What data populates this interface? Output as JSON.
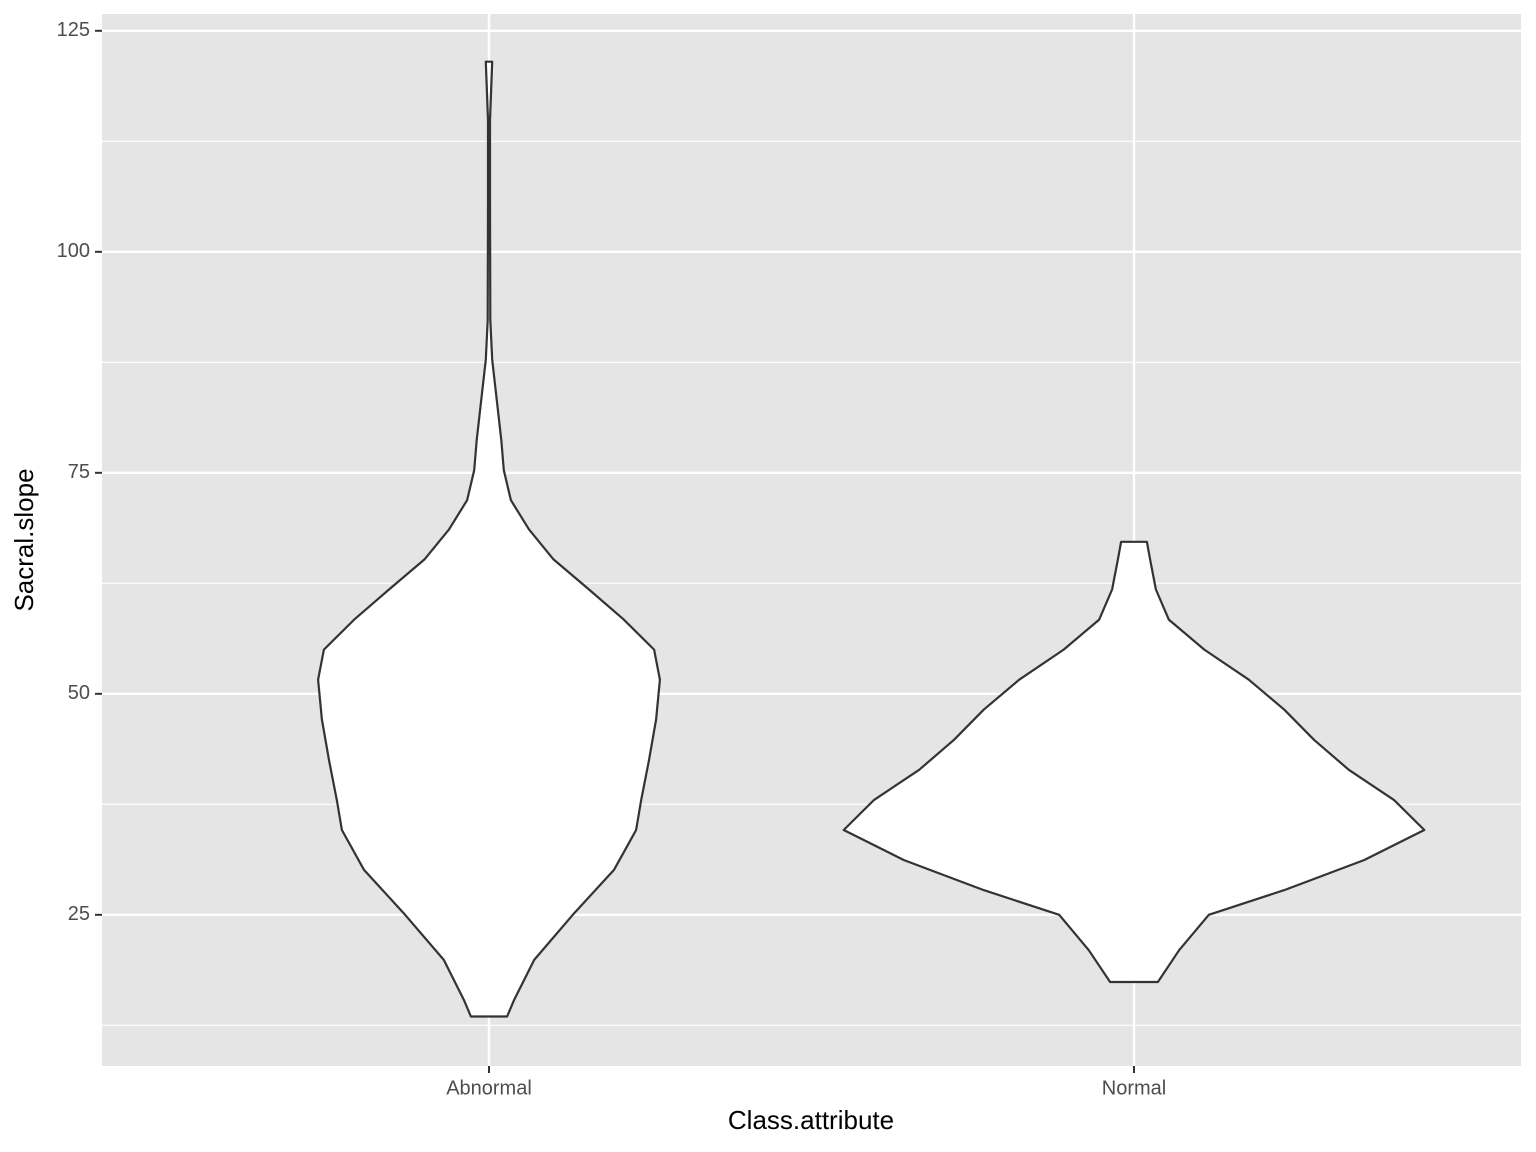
{
  "chart_data": {
    "type": "violin",
    "x_label": "Class.attribute",
    "y_label": "Sacral.slope",
    "categories": [
      "Abnormal",
      "Normal"
    ],
    "xlim": [
      0.4,
      2.6
    ],
    "ylim": [
      7.9,
      126.9
    ],
    "yticks": [
      25,
      50,
      75,
      100,
      125
    ],
    "minor_yticks": [
      12.5,
      37.5,
      62.5,
      87.5,
      112.5
    ],
    "grid": true,
    "panel_color": "#e5e5e5",
    "fill": "#ffffff",
    "line_color": "#333333",
    "series": [
      {
        "values": [
          13.5,
          15.4,
          19.9,
          25,
          30.1,
          34.6,
          38,
          42.5,
          47.1,
          51.6,
          55,
          58.4,
          61.8,
          65.2,
          68.6,
          71.9,
          75.3,
          78.7,
          83.3,
          87.8,
          92.3,
          105.9,
          114.9,
          121.5
        ],
        "half_width": [
          0.028,
          0.039,
          0.07,
          0.13,
          0.194,
          0.228,
          0.236,
          0.248,
          0.259,
          0.265,
          0.256,
          0.209,
          0.155,
          0.1,
          0.062,
          0.034,
          0.023,
          0.019,
          0.012,
          0.005,
          0.002,
          0.0015,
          0.0015,
          0.005
        ]
      },
      {
        "values": [
          17.4,
          21,
          25,
          27.8,
          31.2,
          34.6,
          38,
          41.4,
          44.8,
          48.2,
          51.6,
          55,
          58.4,
          61.8,
          65.2,
          67.2
        ],
        "half_width": [
          0.037,
          0.07,
          0.116,
          0.233,
          0.357,
          0.45,
          0.403,
          0.333,
          0.279,
          0.233,
          0.178,
          0.109,
          0.054,
          0.034,
          0.025,
          0.02
        ]
      }
    ]
  }
}
